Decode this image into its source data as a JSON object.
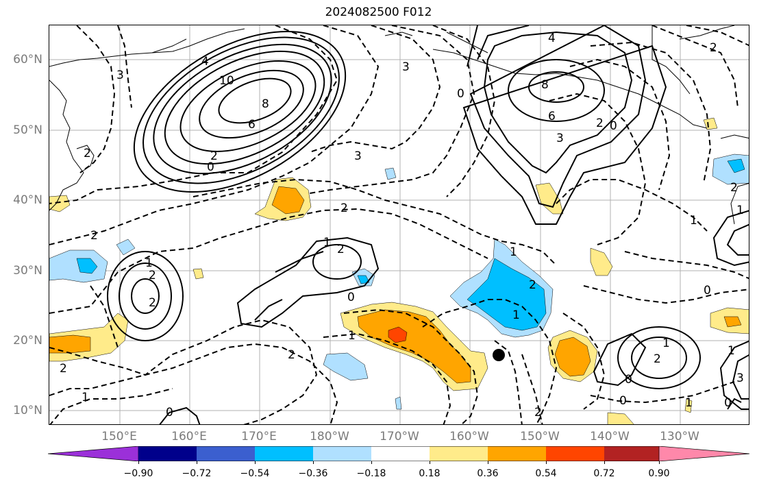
{
  "title": "2024082500 F012",
  "lat_labels": [
    "60°N",
    "50°N",
    "40°N",
    "30°N",
    "20°N",
    "10°N"
  ],
  "lon_labels": [
    "150°E",
    "160°E",
    "170°E",
    "180°W",
    "170°W",
    "160°W",
    "150°W",
    "140°W",
    "130°W"
  ],
  "contour_labels": [
    "10",
    "8",
    "6",
    "4",
    "2",
    "0",
    "3",
    "2",
    "0",
    "8",
    "6",
    "4",
    "3",
    "2",
    "0",
    "1",
    "2",
    "2",
    "1",
    "2",
    "1",
    "0",
    "1",
    "2",
    "1",
    "2",
    "1",
    "0",
    "3",
    "3",
    "2",
    "2",
    "2",
    "1",
    "0",
    "1",
    "2",
    "0",
    "1",
    "0",
    "0",
    "2",
    "1",
    "3",
    "2",
    "2",
    "1"
  ],
  "colorbar": {
    "ticks": [
      "−0.90",
      "−0.72",
      "−0.54",
      "−0.36",
      "−0.18",
      "0.18",
      "0.36",
      "0.54",
      "0.72",
      "0.90"
    ],
    "colors": [
      "#9b30d9",
      "#00008b",
      "#3b5fcf",
      "#00bfff",
      "#b0e0ff",
      "#ffffff",
      "#ffeb8a",
      "#ffa500",
      "#ff4500",
      "#b22222",
      "#ff88aa"
    ]
  },
  "legend": {
    "marker": "storm-position-dot"
  }
}
